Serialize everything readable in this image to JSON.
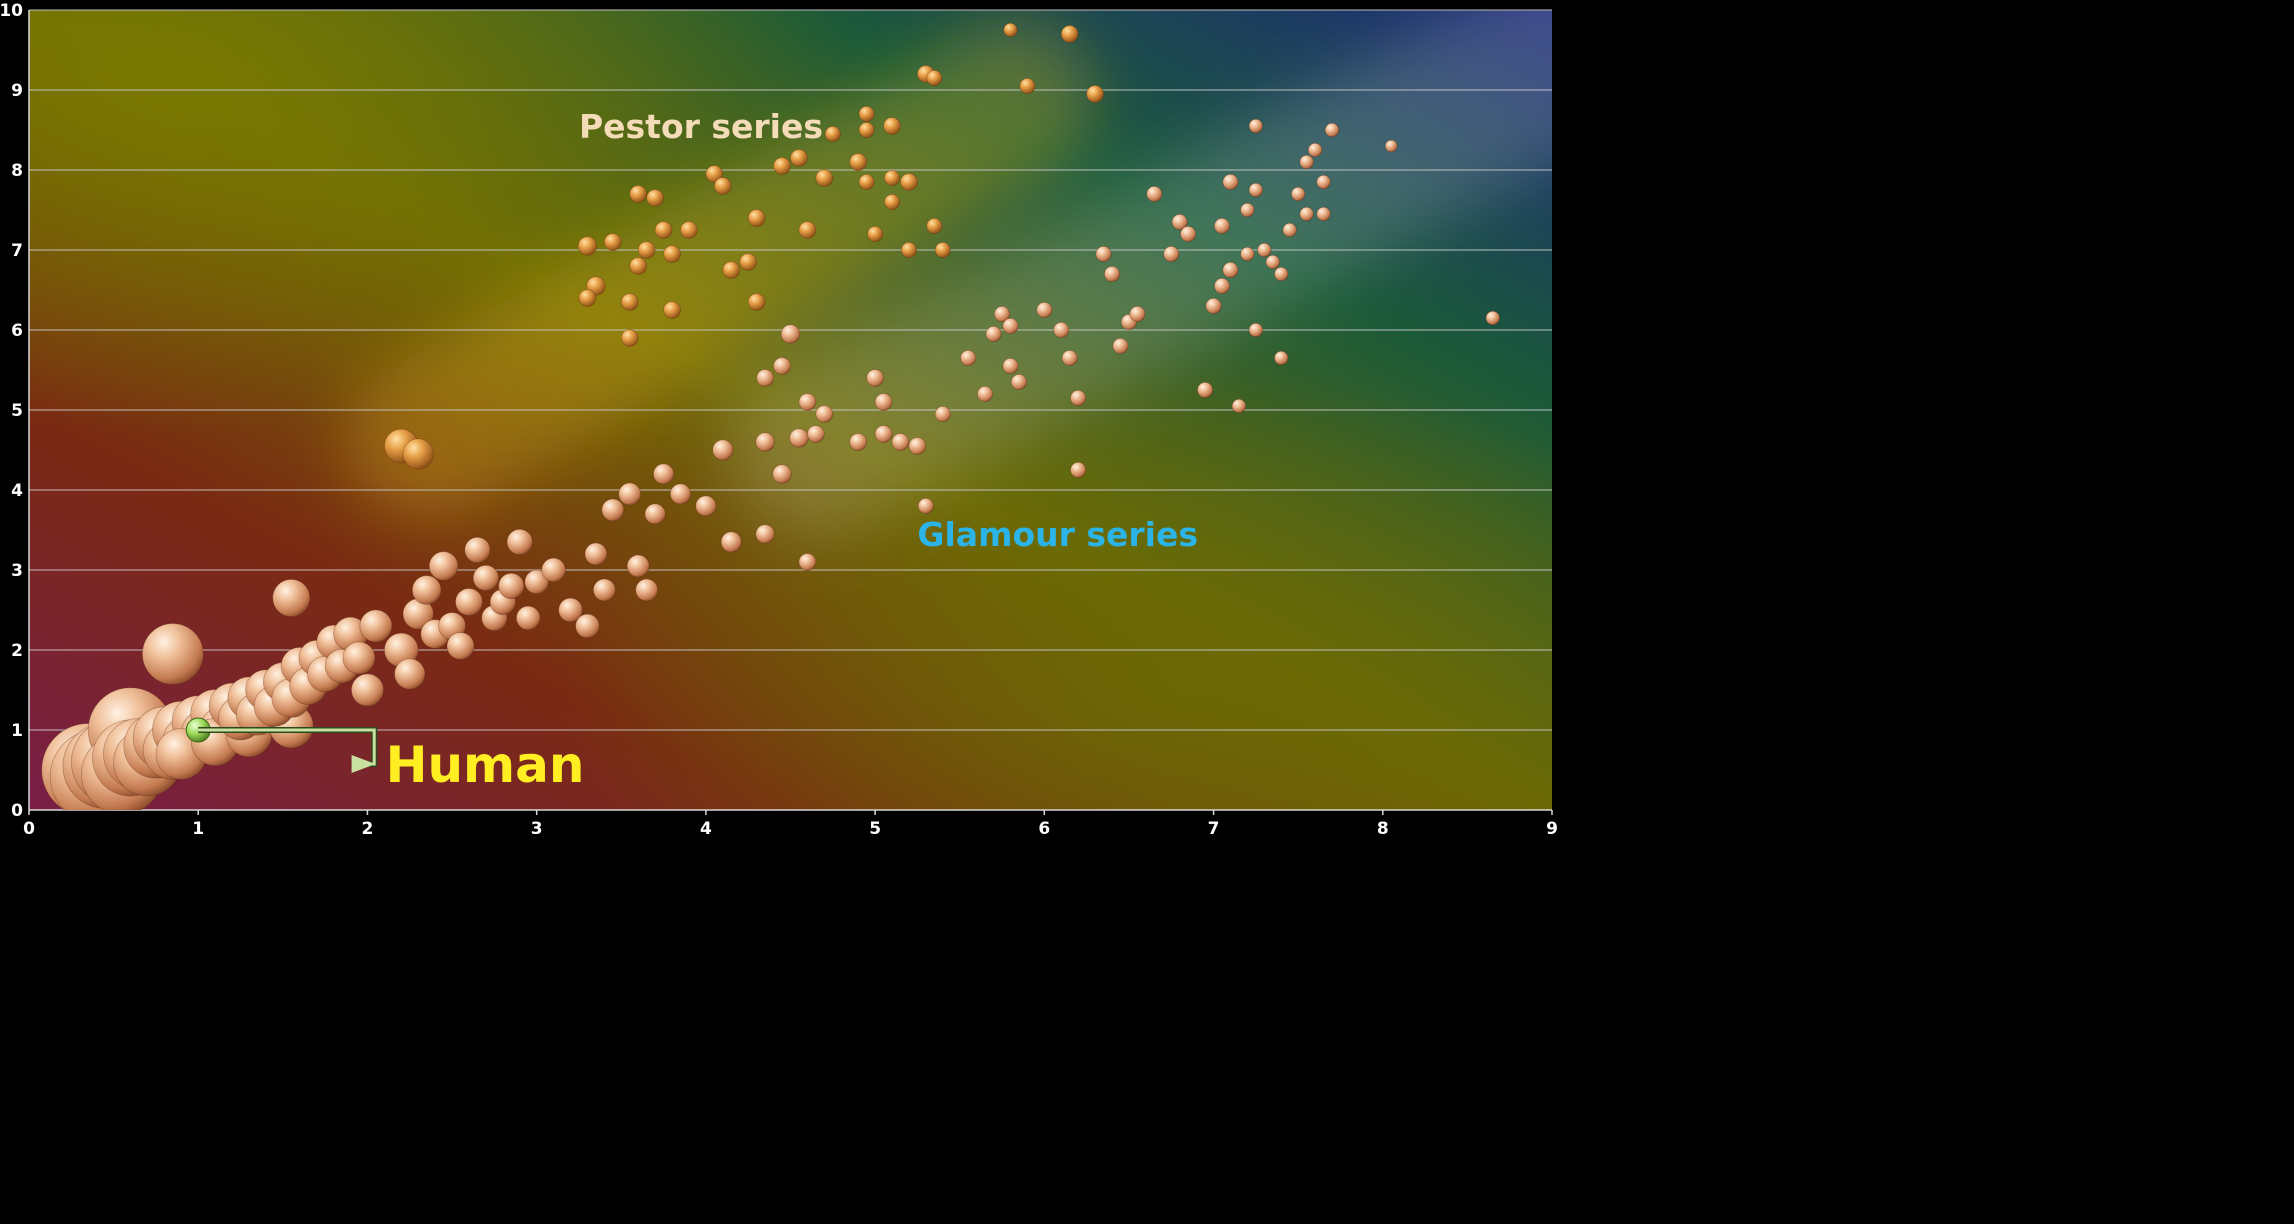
{
  "chart_data": {
    "type": "scatter",
    "subtype": "bubble",
    "title": "",
    "xlabel": "",
    "ylabel": "",
    "xlim": [
      0,
      9
    ],
    "ylim": [
      0,
      10
    ],
    "x_ticks": [
      "0",
      "1",
      "2",
      "3",
      "4",
      "5",
      "6",
      "7",
      "8",
      "9"
    ],
    "y_ticks": [
      "0",
      "1",
      "2",
      "3",
      "4",
      "5",
      "6",
      "7",
      "8",
      "9",
      "10"
    ],
    "grid": "horizontal",
    "legend": "none",
    "colors": {
      "bubble": "#e8a878",
      "bubble_highlight": "#fbe0c8",
      "pestor_bubble": "#e0922e",
      "human_marker": "#9ad858",
      "gridline": "#c8c8c8",
      "tick_label": "#ffffff"
    },
    "annotations": [
      {
        "text": "Pestor series",
        "x": 3.25,
        "y": 8.4,
        "color": "#f5dcb8"
      },
      {
        "text": "Glamour series",
        "x": 5.25,
        "y": 3.3,
        "color": "#2ab4e8"
      },
      {
        "text": "Human",
        "x": 2.45,
        "y": 0.45,
        "color": "#ffee22",
        "points_to": [
          1.0,
          1.0
        ]
      }
    ],
    "highlight_point": {
      "label": "Human",
      "x": 1.0,
      "y": 1.0
    },
    "series": [
      {
        "values": [
          [
            0.35,
            0.5,
            0.55
          ],
          [
            0.4,
            0.42,
            0.55
          ],
          [
            0.45,
            0.55,
            0.5
          ],
          [
            0.5,
            0.6,
            0.5
          ],
          [
            0.55,
            0.45,
            0.48
          ],
          [
            0.6,
            0.65,
            0.45
          ],
          [
            0.65,
            0.7,
            0.42
          ],
          [
            0.7,
            0.6,
            0.4
          ],
          [
            0.75,
            0.8,
            0.38
          ],
          [
            0.6,
            1.0,
            0.5
          ],
          [
            0.8,
            0.9,
            0.37
          ],
          [
            0.85,
            0.75,
            0.35
          ],
          [
            0.9,
            1.0,
            0.34
          ],
          [
            0.95,
            0.85,
            0.32
          ],
          [
            1.0,
            1.1,
            0.31
          ],
          [
            1.05,
            0.95,
            0.3
          ],
          [
            1.1,
            1.2,
            0.29
          ],
          [
            1.15,
            1.0,
            0.28
          ],
          [
            1.2,
            1.3,
            0.27
          ],
          [
            1.25,
            1.15,
            0.26
          ],
          [
            1.3,
            1.4,
            0.25
          ],
          [
            1.35,
            1.2,
            0.25
          ],
          [
            1.4,
            1.5,
            0.24
          ],
          [
            1.45,
            1.3,
            0.24
          ],
          [
            1.5,
            1.6,
            0.23
          ],
          [
            1.55,
            1.4,
            0.23
          ],
          [
            1.6,
            1.8,
            0.22
          ],
          [
            1.65,
            1.55,
            0.22
          ],
          [
            1.7,
            1.9,
            0.21
          ],
          [
            1.75,
            1.7,
            0.21
          ],
          [
            1.8,
            2.1,
            0.2
          ],
          [
            1.85,
            1.8,
            0.2
          ],
          [
            1.9,
            2.2,
            0.2
          ],
          [
            1.95,
            1.9,
            0.19
          ],
          [
            2.0,
            1.5,
            0.19
          ],
          [
            2.05,
            2.3,
            0.19
          ],
          [
            1.55,
            1.05,
            0.26
          ],
          [
            1.3,
            0.95,
            0.27
          ],
          [
            1.1,
            0.85,
            0.28
          ],
          [
            0.9,
            0.7,
            0.3
          ],
          [
            0.85,
            1.95,
            0.36
          ],
          [
            1.55,
            2.65,
            0.22
          ],
          [
            2.2,
            2.0,
            0.2
          ],
          [
            2.25,
            1.7,
            0.18
          ],
          [
            2.3,
            2.45,
            0.18
          ],
          [
            2.35,
            2.75,
            0.17
          ],
          [
            2.4,
            2.2,
            0.17
          ],
          [
            2.45,
            3.05,
            0.17
          ],
          [
            2.5,
            2.3,
            0.16
          ],
          [
            2.55,
            2.05,
            0.16
          ],
          [
            2.6,
            2.6,
            0.16
          ],
          [
            2.65,
            3.25,
            0.15
          ],
          [
            2.7,
            2.9,
            0.15
          ],
          [
            2.75,
            2.4,
            0.15
          ],
          [
            2.8,
            2.6,
            0.15
          ],
          [
            2.85,
            2.8,
            0.15
          ],
          [
            2.9,
            3.35,
            0.15
          ],
          [
            2.95,
            2.4,
            0.14
          ],
          [
            3.0,
            2.85,
            0.14
          ],
          [
            3.1,
            3.0,
            0.14
          ],
          [
            3.2,
            2.5,
            0.14
          ],
          [
            3.3,
            2.3,
            0.14
          ],
          [
            3.35,
            3.2,
            0.13
          ],
          [
            3.4,
            2.75,
            0.13
          ],
          [
            3.45,
            3.75,
            0.13
          ],
          [
            3.55,
            3.95,
            0.13
          ],
          [
            3.6,
            3.05,
            0.13
          ],
          [
            3.65,
            2.75,
            0.13
          ],
          [
            3.7,
            3.7,
            0.12
          ],
          [
            3.75,
            4.2,
            0.12
          ],
          [
            3.85,
            3.95,
            0.12
          ],
          [
            4.0,
            3.8,
            0.12
          ],
          [
            4.1,
            4.5,
            0.12
          ],
          [
            4.15,
            3.35,
            0.12
          ],
          [
            4.35,
            3.45,
            0.11
          ],
          [
            4.35,
            4.6,
            0.11
          ],
          [
            4.45,
            4.2,
            0.11
          ],
          [
            4.5,
            5.95,
            0.11
          ],
          [
            4.55,
            4.65,
            0.11
          ],
          [
            4.6,
            5.1,
            0.1
          ],
          [
            4.65,
            4.7,
            0.1
          ],
          [
            4.7,
            4.95,
            0.1
          ],
          [
            4.6,
            3.1,
            0.1
          ],
          [
            4.35,
            5.4,
            0.1
          ],
          [
            4.45,
            5.55,
            0.1
          ],
          [
            4.9,
            4.6,
            0.1
          ],
          [
            5.0,
            5.4,
            0.1
          ],
          [
            5.05,
            5.1,
            0.1
          ],
          [
            5.05,
            4.7,
            0.1
          ],
          [
            5.15,
            4.6,
            0.1
          ],
          [
            5.25,
            4.55,
            0.1
          ],
          [
            5.3,
            3.8,
            0.09
          ],
          [
            5.4,
            4.95,
            0.09
          ],
          [
            5.55,
            5.65,
            0.09
          ],
          [
            5.65,
            5.2,
            0.09
          ],
          [
            5.7,
            5.95,
            0.09
          ],
          [
            5.75,
            6.2,
            0.09
          ],
          [
            5.8,
            5.55,
            0.09
          ],
          [
            5.85,
            5.35,
            0.09
          ],
          [
            5.8,
            6.05,
            0.09
          ],
          [
            6.0,
            6.25,
            0.09
          ],
          [
            6.1,
            6.0,
            0.09
          ],
          [
            6.15,
            5.65,
            0.09
          ],
          [
            6.2,
            5.15,
            0.09
          ],
          [
            6.2,
            4.25,
            0.09
          ],
          [
            6.35,
            6.95,
            0.09
          ],
          [
            6.4,
            6.7,
            0.09
          ],
          [
            6.45,
            5.8,
            0.09
          ],
          [
            6.5,
            6.1,
            0.09
          ],
          [
            6.55,
            6.2,
            0.09
          ],
          [
            6.65,
            7.7,
            0.09
          ],
          [
            6.75,
            6.95,
            0.09
          ],
          [
            6.8,
            7.35,
            0.09
          ],
          [
            6.85,
            7.2,
            0.09
          ],
          [
            6.95,
            5.25,
            0.09
          ],
          [
            7.0,
            6.3,
            0.09
          ],
          [
            7.05,
            6.55,
            0.09
          ],
          [
            7.05,
            7.3,
            0.09
          ],
          [
            7.1,
            6.75,
            0.09
          ],
          [
            7.1,
            7.85,
            0.09
          ],
          [
            7.15,
            5.05,
            0.08
          ],
          [
            7.2,
            6.95,
            0.08
          ],
          [
            7.2,
            7.5,
            0.08
          ],
          [
            7.25,
            7.75,
            0.08
          ],
          [
            7.25,
            6.0,
            0.08
          ],
          [
            7.25,
            8.55,
            0.08
          ],
          [
            7.3,
            7.0,
            0.08
          ],
          [
            7.35,
            6.85,
            0.08
          ],
          [
            7.4,
            6.7,
            0.08
          ],
          [
            7.4,
            5.65,
            0.08
          ],
          [
            7.45,
            7.25,
            0.08
          ],
          [
            7.5,
            7.7,
            0.08
          ],
          [
            7.55,
            8.1,
            0.08
          ],
          [
            7.55,
            7.45,
            0.08
          ],
          [
            7.6,
            8.25,
            0.08
          ],
          [
            7.65,
            7.85,
            0.08
          ],
          [
            7.7,
            8.5,
            0.08
          ],
          [
            7.65,
            7.45,
            0.08
          ],
          [
            8.05,
            8.3,
            0.07
          ],
          [
            8.65,
            6.15,
            0.08
          ]
        ]
      },
      {
        "values": [
          [
            2.2,
            4.55,
            0.2
          ],
          [
            2.3,
            4.45,
            0.18
          ],
          [
            3.3,
            7.05,
            0.11
          ],
          [
            3.35,
            6.55,
            0.11
          ],
          [
            3.3,
            6.4,
            0.1
          ],
          [
            3.45,
            7.1,
            0.1
          ],
          [
            3.55,
            6.35,
            0.1
          ],
          [
            3.6,
            7.7,
            0.1
          ],
          [
            3.55,
            5.9,
            0.1
          ],
          [
            3.6,
            6.8,
            0.1
          ],
          [
            3.65,
            7.0,
            0.1
          ],
          [
            3.7,
            7.65,
            0.1
          ],
          [
            3.75,
            7.25,
            0.1
          ],
          [
            3.8,
            6.25,
            0.1
          ],
          [
            3.8,
            6.95,
            0.1
          ],
          [
            3.9,
            7.25,
            0.1
          ],
          [
            4.05,
            7.95,
            0.1
          ],
          [
            4.1,
            7.8,
            0.1
          ],
          [
            4.15,
            6.75,
            0.1
          ],
          [
            4.25,
            6.85,
            0.1
          ],
          [
            4.3,
            7.4,
            0.1
          ],
          [
            4.3,
            6.35,
            0.1
          ],
          [
            4.45,
            8.05,
            0.1
          ],
          [
            4.55,
            8.15,
            0.1
          ],
          [
            4.6,
            7.25,
            0.1
          ],
          [
            4.7,
            7.9,
            0.1
          ],
          [
            4.75,
            8.45,
            0.09
          ],
          [
            4.9,
            8.1,
            0.1
          ],
          [
            4.95,
            8.5,
            0.09
          ],
          [
            4.95,
            7.85,
            0.09
          ],
          [
            4.95,
            8.7,
            0.09
          ],
          [
            5.0,
            7.2,
            0.09
          ],
          [
            5.1,
            7.9,
            0.09
          ],
          [
            5.1,
            8.55,
            0.1
          ],
          [
            5.1,
            7.6,
            0.09
          ],
          [
            5.2,
            7.0,
            0.09
          ],
          [
            5.2,
            7.85,
            0.1
          ],
          [
            5.3,
            9.2,
            0.1
          ],
          [
            5.35,
            9.15,
            0.09
          ],
          [
            5.35,
            7.3,
            0.09
          ],
          [
            5.4,
            7.0,
            0.09
          ],
          [
            5.8,
            9.75,
            0.08
          ],
          [
            5.9,
            9.05,
            0.09
          ],
          [
            6.15,
            9.7,
            0.1
          ],
          [
            6.3,
            8.95,
            0.1
          ]
        ]
      }
    ]
  }
}
